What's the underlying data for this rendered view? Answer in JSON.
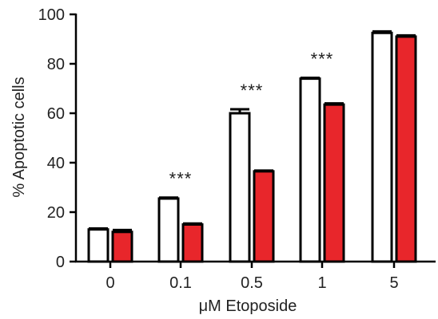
{
  "chart_data": {
    "type": "bar",
    "xlabel": "μM Etoposide",
    "ylabel": "% Apoptotic cells",
    "ylim": [
      0,
      100
    ],
    "yticks": [
      0,
      20,
      40,
      60,
      80,
      100
    ],
    "categories": [
      "0",
      "0.1",
      "0.5",
      "1",
      "5"
    ],
    "series": [
      {
        "color": "#ffffff",
        "values": [
          13,
          25.5,
          60,
          74,
          92.5
        ],
        "errors": [
          0.4,
          0.4,
          1.6,
          0.3,
          0.6
        ]
      },
      {
        "color": "#e8262b",
        "values": [
          12,
          15,
          36.5,
          63.5,
          91
        ],
        "errors": [
          0.8,
          0.4,
          0.3,
          0.5,
          0.5
        ]
      }
    ],
    "annotations": [
      {
        "category": "0.1",
        "text": "***"
      },
      {
        "category": "0.5",
        "text": "***"
      },
      {
        "category": "1",
        "text": "***"
      }
    ],
    "grid": false,
    "legend": "none"
  }
}
